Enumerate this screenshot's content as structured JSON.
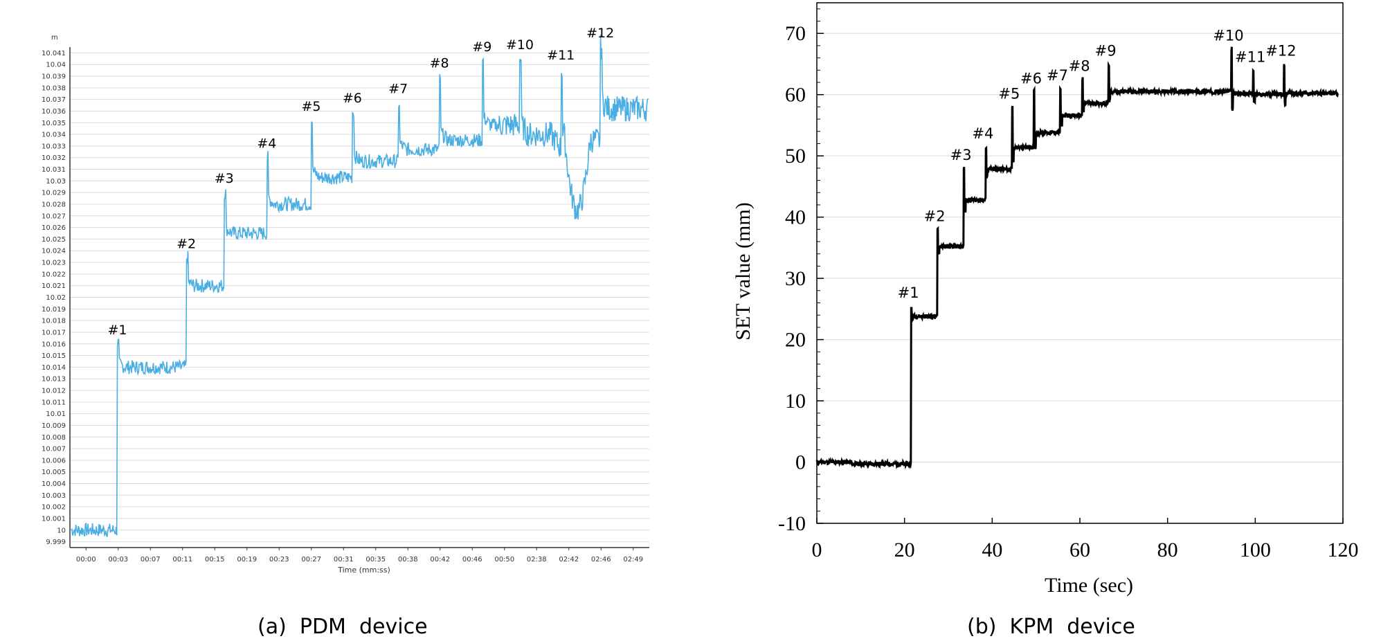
{
  "captions": {
    "left": "(a)  PDM  device",
    "right": "(b)  KPM  device"
  },
  "colors": {
    "pdm_line": "#4aaee3",
    "kpm_line": "#000000",
    "grid": "#d9d9d9"
  },
  "chart_data": [
    {
      "type": "line",
      "device": "PDM",
      "unit_label": "m",
      "xlabel": "Time (mm:ss)",
      "x_tick_labels": [
        "00:00",
        "00:03",
        "00:07",
        "00:11",
        "00:15",
        "00:19",
        "00:23",
        "00:27",
        "00:31",
        "00:35",
        "00:38",
        "00:42",
        "00:46",
        "00:50",
        "02:38",
        "02:42",
        "02:46",
        "02:49"
      ],
      "y_tick_labels": [
        "10.041",
        "10.04",
        "10.039",
        "10.038",
        "10.037",
        "10.036",
        "10.035",
        "10.034",
        "10.033",
        "10.032",
        "10.031",
        "10.03",
        "10.029",
        "10.028",
        "10.027",
        "10.026",
        "10.025",
        "10.024",
        "10.023",
        "10.022",
        "10.021",
        "10.02",
        "10.019",
        "10.018",
        "10.017",
        "10.016",
        "10.015",
        "10.014",
        "10.013",
        "10.012",
        "10.011",
        "10.01",
        "10.009",
        "10.008",
        "10.007",
        "10.006",
        "10.005",
        "10.004",
        "10.003",
        "10.002",
        "10.001",
        "10",
        "9.999"
      ],
      "ylim": [
        9.9985,
        10.0415
      ],
      "grid": true,
      "levels": [
        {
          "label": "",
          "start": 0.0,
          "value": 10.0
        },
        {
          "label": "#1",
          "start": 1.4,
          "value": 10.014,
          "peak": 10.016
        },
        {
          "label": "#2",
          "start": 3.5,
          "value": 10.021,
          "peak": 10.0234
        },
        {
          "label": "#3",
          "start": 4.65,
          "value": 10.0255,
          "peak": 10.029
        },
        {
          "label": "#4",
          "start": 5.95,
          "value": 10.028,
          "peak": 10.032
        },
        {
          "label": "#5",
          "start": 7.3,
          "value": 10.0303,
          "peak": 10.0352
        },
        {
          "label": "#6",
          "start": 8.55,
          "value": 10.0317,
          "peak": 10.0359
        },
        {
          "label": "#7",
          "start": 9.95,
          "value": 10.0327,
          "peak": 10.0367
        },
        {
          "label": "#8",
          "start": 11.2,
          "value": 10.0335,
          "peak": 10.0389
        },
        {
          "label": "#9",
          "start": 12.5,
          "value": 10.0348,
          "peak": 10.0403
        },
        {
          "label": "#10",
          "start": 13.65,
          "value": 10.034,
          "peak": 10.0405
        },
        {
          "label": "#11",
          "start": 14.9,
          "value": 10.0335,
          "peak": 10.0396
        },
        {
          "label": "#12",
          "start": 16.1,
          "value": 10.0362,
          "peak": 10.0415
        }
      ]
    },
    {
      "type": "line",
      "device": "KPM",
      "xlabel": "Time (sec)",
      "ylabel": "SET value (mm)",
      "xlim": [
        0,
        120
      ],
      "ylim": [
        -10,
        75
      ],
      "x_ticks": [
        0,
        20,
        40,
        60,
        80,
        100,
        120
      ],
      "y_ticks": [
        -10,
        0,
        10,
        20,
        30,
        40,
        50,
        60,
        70
      ],
      "grid": true,
      "levels": [
        {
          "label": "",
          "start": 0,
          "value": 0
        },
        {
          "label": "#1",
          "start": 21.5,
          "value": 23.8,
          "peak": 25.5
        },
        {
          "label": "#2",
          "start": 27.5,
          "value": 35.2,
          "peak": 38
        },
        {
          "label": "#3",
          "start": 33.5,
          "value": 42.8,
          "peak": 48
        },
        {
          "label": "#4",
          "start": 38.5,
          "value": 47.8,
          "peak": 51.5
        },
        {
          "label": "#5",
          "start": 44.5,
          "value": 51.4,
          "peak": 58
        },
        {
          "label": "#6",
          "start": 49.5,
          "value": 53.8,
          "peak": 60.5
        },
        {
          "label": "#7",
          "start": 55.5,
          "value": 56.6,
          "peak": 61
        },
        {
          "label": "#8",
          "start": 60.5,
          "value": 58.6,
          "peak": 62.5
        },
        {
          "label": "#9",
          "start": 66.5,
          "value": 60.5,
          "peak": 65
        },
        {
          "label": "#10",
          "start": 94.5,
          "value": 60.2,
          "peak": 67.5
        },
        {
          "label": "#11",
          "start": 99.5,
          "value": 60.1,
          "peak": 64
        },
        {
          "label": "#12",
          "start": 106.5,
          "value": 60.2,
          "peak": 65
        }
      ]
    }
  ]
}
